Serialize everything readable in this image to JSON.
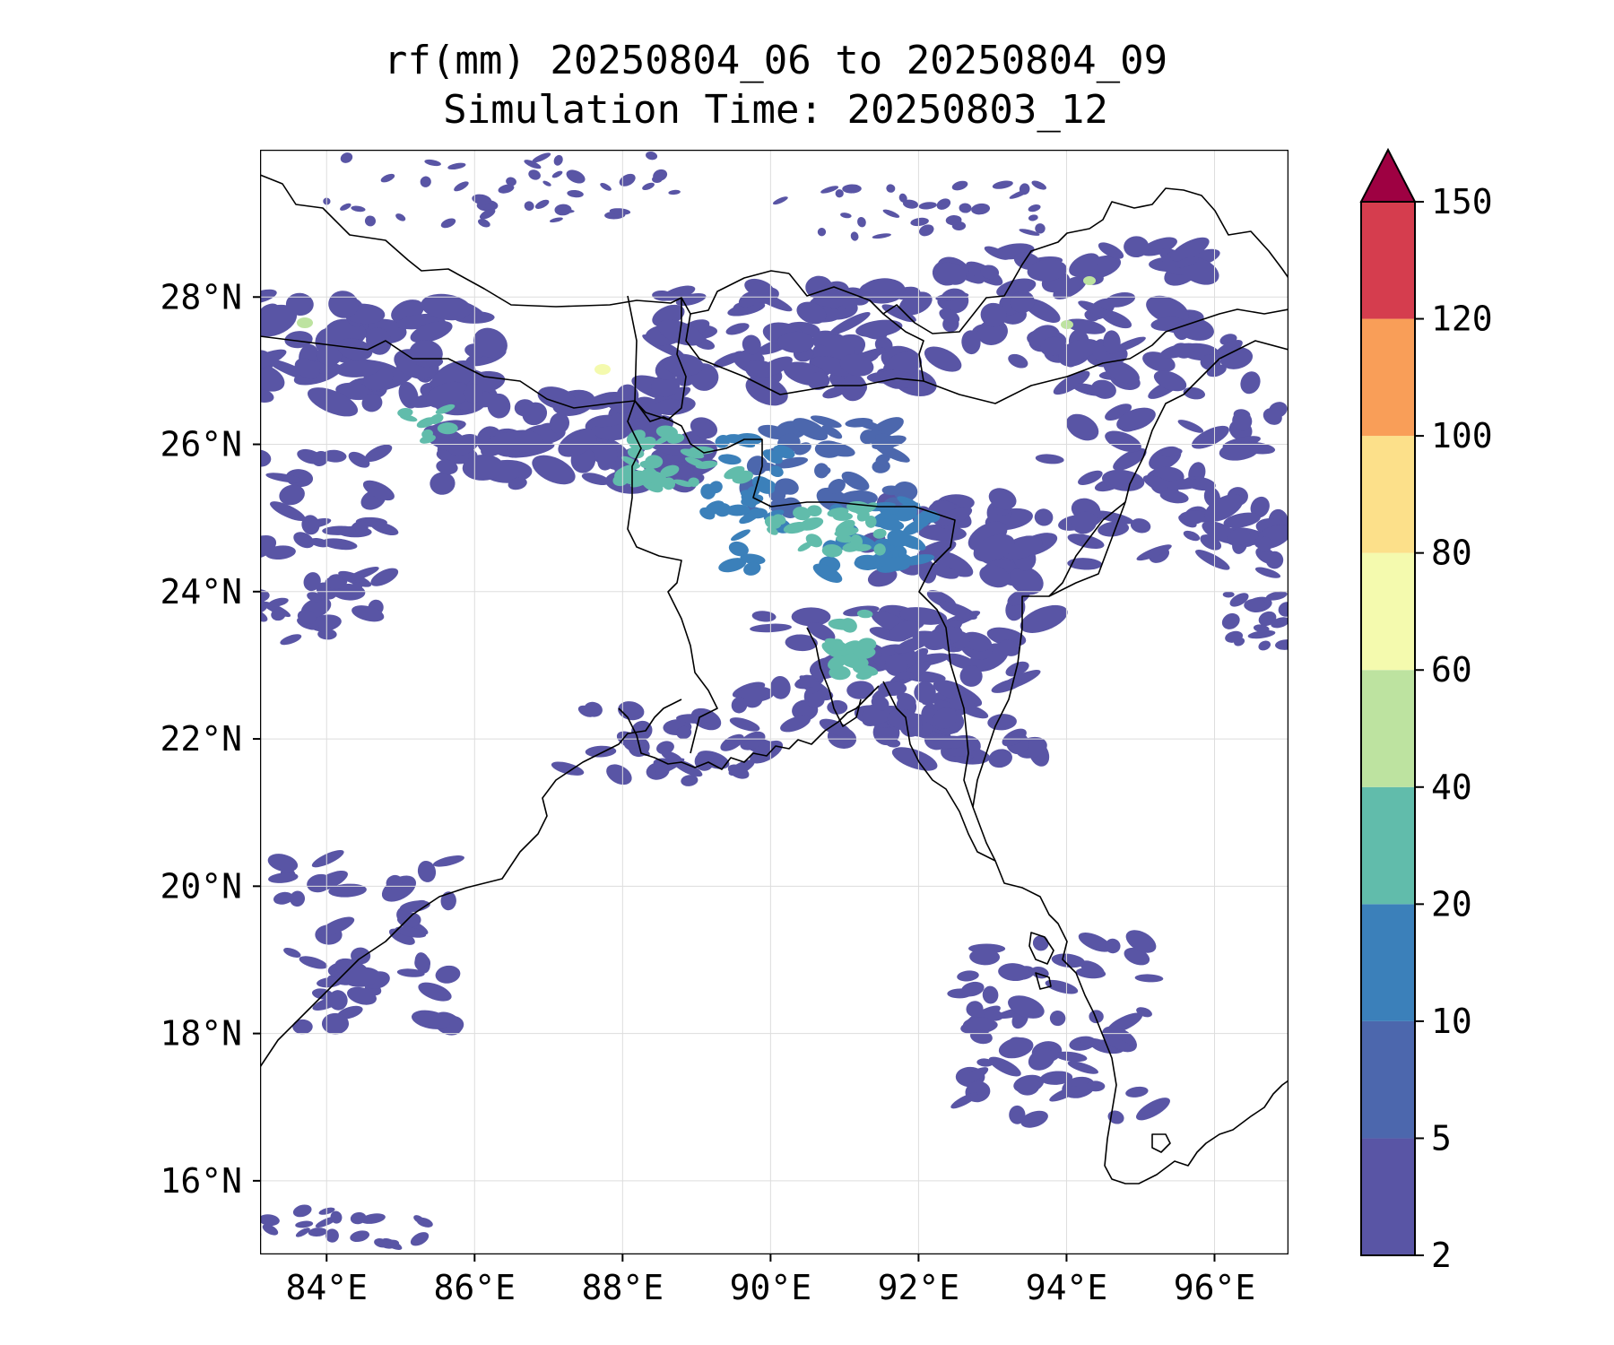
{
  "title": {
    "line1": "rf(mm) 20250804_06 to 20250804_09",
    "line2": "Simulation Time: 20250803_12"
  },
  "map": {
    "lon_range": [
      83.1,
      97.0
    ],
    "lat_range": [
      15.0,
      30.0
    ],
    "x_ticks": [
      {
        "value": 84,
        "label": "84°E"
      },
      {
        "value": 86,
        "label": "86°E"
      },
      {
        "value": 88,
        "label": "88°E"
      },
      {
        "value": 90,
        "label": "90°E"
      },
      {
        "value": 92,
        "label": "92°E"
      },
      {
        "value": 94,
        "label": "94°E"
      },
      {
        "value": 96,
        "label": "96°E"
      }
    ],
    "y_ticks": [
      {
        "value": 16,
        "label": "16°N"
      },
      {
        "value": 18,
        "label": "18°N"
      },
      {
        "value": 20,
        "label": "20°N"
      },
      {
        "value": 22,
        "label": "22°N"
      },
      {
        "value": 24,
        "label": "24°N"
      },
      {
        "value": 26,
        "label": "26°N"
      },
      {
        "value": 28,
        "label": "28°N"
      }
    ],
    "grid": true
  },
  "colorbar": {
    "levels": [
      2,
      5,
      10,
      20,
      40,
      60,
      80,
      100,
      120,
      150
    ],
    "labels": [
      "2",
      "5",
      "10",
      "20",
      "40",
      "60",
      "80",
      "100",
      "120",
      "150"
    ],
    "colors": [
      "#5955a5",
      "#4c67ad",
      "#3b80ba",
      "#61bcab",
      "#bde3a0",
      "#f4faae",
      "#fce08a",
      "#f99e58",
      "#d53d4e"
    ],
    "extend_color": "#9e0142",
    "extend": "max"
  },
  "rain_colors": {
    "low": "#5955a5",
    "mid": "#4c67ad",
    "moderate": "#3b80ba",
    "heavy": "#61bcab",
    "very_heavy": "#bde3a0",
    "peak": "#f4faae"
  }
}
